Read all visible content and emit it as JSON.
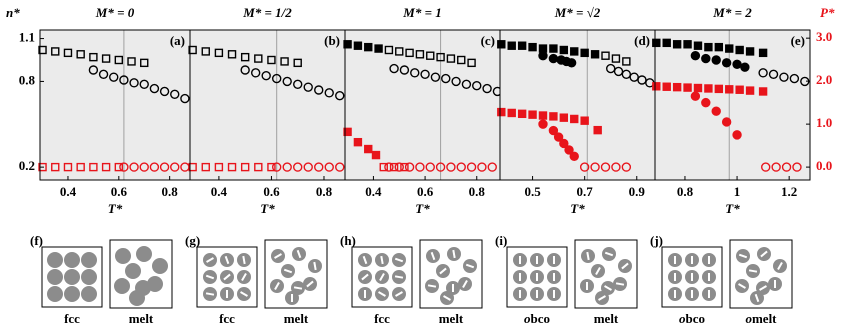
{
  "chart_data": [
    {
      "type": "scatter",
      "title": "M* = 0",
      "panel_label": "(a)",
      "xlabel": "T*",
      "ylabel": "n*",
      "xlim": [
        0.29,
        0.88
      ],
      "xticks": [
        0.4,
        0.6,
        0.8
      ],
      "ylim": [
        0.11,
        1.16
      ],
      "yticks": [
        0.2,
        0.8,
        1.1
      ],
      "y2lim": [
        -0.3,
        3.19
      ],
      "coexistence": 0.62,
      "series": [
        {
          "color": "#000000",
          "marker": "square",
          "filled": false,
          "x": [
            0.3,
            0.35,
            0.4,
            0.45,
            0.5,
            0.55,
            0.6,
            0.65,
            0.7
          ],
          "values": [
            1.02,
            1.01,
            1.0,
            0.99,
            0.97,
            0.96,
            0.95,
            0.94,
            0.93
          ]
        },
        {
          "color": "#000000",
          "marker": "circle",
          "filled": false,
          "x": [
            0.5,
            0.54,
            0.58,
            0.62,
            0.66,
            0.7,
            0.74,
            0.78,
            0.82,
            0.86
          ],
          "values": [
            0.88,
            0.85,
            0.83,
            0.81,
            0.79,
            0.78,
            0.75,
            0.73,
            0.71,
            0.68
          ]
        },
        {
          "color": "#e8141b",
          "marker": "square",
          "filled": false,
          "axis": "y2",
          "x": [
            0.3,
            0.35,
            0.4,
            0.45,
            0.5,
            0.55,
            0.6
          ],
          "values": [
            0,
            0,
            0,
            0,
            0,
            0,
            0
          ]
        },
        {
          "color": "#e8141b",
          "marker": "circle",
          "filled": false,
          "axis": "y2",
          "x": [
            0.62,
            0.66,
            0.7,
            0.74,
            0.78,
            0.82,
            0.86
          ],
          "values": [
            0,
            0,
            0,
            0,
            0,
            0,
            0
          ]
        }
      ]
    },
    {
      "type": "scatter",
      "title": "M* = 1/2",
      "panel_label": "(b)",
      "xlabel": "T*",
      "xlim": [
        0.29,
        0.88
      ],
      "xticks": [
        0.4,
        0.6,
        0.8
      ],
      "ylim": [
        0.11,
        1.16
      ],
      "y2lim": [
        -0.3,
        3.19
      ],
      "coexistence": 0.62,
      "series": [
        {
          "color": "#000000",
          "marker": "square",
          "filled": false,
          "x": [
            0.3,
            0.35,
            0.4,
            0.45,
            0.5,
            0.55,
            0.6,
            0.65,
            0.7
          ],
          "values": [
            1.02,
            1.01,
            1.0,
            0.99,
            0.97,
            0.96,
            0.95,
            0.94,
            0.93
          ]
        },
        {
          "color": "#000000",
          "marker": "circle",
          "filled": false,
          "x": [
            0.5,
            0.54,
            0.58,
            0.62,
            0.66,
            0.7,
            0.74,
            0.78,
            0.82,
            0.86
          ],
          "values": [
            0.88,
            0.86,
            0.84,
            0.82,
            0.8,
            0.78,
            0.76,
            0.74,
            0.72,
            0.7
          ]
        },
        {
          "color": "#e8141b",
          "marker": "square",
          "filled": false,
          "axis": "y2",
          "x": [
            0.3,
            0.35,
            0.4,
            0.45,
            0.5,
            0.55,
            0.6
          ],
          "values": [
            0,
            0,
            0,
            0,
            0,
            0,
            0
          ]
        },
        {
          "color": "#e8141b",
          "marker": "circle",
          "filled": false,
          "axis": "y2",
          "x": [
            0.62,
            0.66,
            0.7,
            0.74,
            0.78,
            0.82,
            0.86
          ],
          "values": [
            0,
            0,
            0,
            0,
            0,
            0,
            0
          ]
        }
      ]
    },
    {
      "type": "scatter",
      "title": "M* = 1",
      "panel_label": "(c)",
      "xlabel": "T*",
      "xlim": [
        0.29,
        0.89
      ],
      "xticks": [
        0.4,
        0.6,
        0.8
      ],
      "ylim": [
        0.11,
        1.16
      ],
      "y2lim": [
        -0.3,
        3.19
      ],
      "coexistence": 0.66,
      "series": [
        {
          "color": "#000000",
          "marker": "square",
          "filled": true,
          "x": [
            0.3,
            0.34,
            0.38,
            0.42
          ],
          "values": [
            1.06,
            1.05,
            1.04,
            1.03
          ]
        },
        {
          "color": "#000000",
          "marker": "square",
          "filled": false,
          "x": [
            0.46,
            0.5,
            0.54,
            0.58,
            0.62,
            0.66,
            0.7,
            0.74,
            0.78
          ],
          "values": [
            1.02,
            1.01,
            1.0,
            0.99,
            0.98,
            0.97,
            0.96,
            0.95,
            0.93
          ]
        },
        {
          "color": "#000000",
          "marker": "circle",
          "filled": false,
          "x": [
            0.48,
            0.52,
            0.56,
            0.6,
            0.64,
            0.68,
            0.72,
            0.76,
            0.8,
            0.84,
            0.88
          ],
          "values": [
            0.89,
            0.88,
            0.86,
            0.85,
            0.83,
            0.82,
            0.8,
            0.78,
            0.77,
            0.75,
            0.73
          ]
        },
        {
          "color": "#e8141b",
          "marker": "square",
          "filled": true,
          "axis": "y2",
          "x": [
            0.3,
            0.34,
            0.38,
            0.41
          ],
          "values": [
            0.82,
            0.58,
            0.42,
            0.28
          ]
        },
        {
          "color": "#e8141b",
          "marker": "square",
          "filled": false,
          "axis": "y2",
          "x": [
            0.44,
            0.48,
            0.52
          ],
          "values": [
            0,
            0,
            0
          ]
        },
        {
          "color": "#e8141b",
          "marker": "circle",
          "filled": false,
          "axis": "y2",
          "x": [
            0.46,
            0.5,
            0.54,
            0.58,
            0.62,
            0.66,
            0.7,
            0.74,
            0.78,
            0.82,
            0.86
          ],
          "values": [
            0,
            0,
            0,
            0,
            0,
            0,
            0,
            0,
            0,
            0,
            0
          ]
        }
      ]
    },
    {
      "type": "scatter",
      "title": "M* = √2",
      "panel_label": "(d)",
      "xlabel": "T*",
      "xlim": [
        0.375,
        0.97
      ],
      "xticks": [
        0.5,
        0.7,
        0.9
      ],
      "ylim": [
        0.11,
        1.16
      ],
      "y2lim": [
        -0.3,
        3.19
      ],
      "coexistence": 0.71,
      "series": [
        {
          "color": "#000000",
          "marker": "square",
          "filled": true,
          "x": [
            0.38,
            0.42,
            0.46,
            0.5,
            0.54,
            0.58,
            0.62,
            0.66,
            0.7,
            0.74
          ],
          "values": [
            1.06,
            1.05,
            1.05,
            1.04,
            1.03,
            1.03,
            1.02,
            1.01,
            1.0,
            0.99
          ]
        },
        {
          "color": "#000000",
          "marker": "circle",
          "filled": true,
          "x": [
            0.54,
            0.58,
            0.61,
            0.63,
            0.65
          ],
          "values": [
            0.98,
            0.96,
            0.95,
            0.94,
            0.93
          ]
        },
        {
          "color": "#000000",
          "marker": "square",
          "filled": false,
          "x": [
            0.78,
            0.82,
            0.86
          ],
          "values": [
            0.98,
            0.96,
            0.94
          ]
        },
        {
          "color": "#000000",
          "marker": "circle",
          "filled": false,
          "x": [
            0.8,
            0.83,
            0.86,
            0.89,
            0.92,
            0.95
          ],
          "values": [
            0.89,
            0.87,
            0.85,
            0.83,
            0.81,
            0.79
          ]
        },
        {
          "color": "#e8141b",
          "marker": "square",
          "filled": true,
          "axis": "y2",
          "x": [
            0.38,
            0.42,
            0.46,
            0.5,
            0.54,
            0.58,
            0.62,
            0.66,
            0.7,
            0.75
          ],
          "values": [
            1.28,
            1.26,
            1.24,
            1.22,
            1.2,
            1.18,
            1.15,
            1.12,
            1.08,
            0.86
          ]
        },
        {
          "color": "#e8141b",
          "marker": "circle",
          "filled": true,
          "axis": "y2",
          "x": [
            0.54,
            0.58,
            0.6,
            0.62,
            0.64,
            0.66
          ],
          "values": [
            1.0,
            0.85,
            0.7,
            0.55,
            0.4,
            0.25
          ]
        },
        {
          "color": "#e8141b",
          "marker": "circle",
          "filled": false,
          "axis": "y2",
          "x": [
            0.7,
            0.74,
            0.78,
            0.82,
            0.86
          ],
          "values": [
            0,
            0,
            0,
            0,
            0
          ]
        }
      ]
    },
    {
      "type": "scatter",
      "title": "M* = 2",
      "panel_label": "(e)",
      "xlabel": "T*",
      "y2label": "P*",
      "xlim": [
        0.685,
        1.28
      ],
      "xticks": [
        0.8,
        1.0,
        1.2
      ],
      "ylim": [
        0.11,
        1.16
      ],
      "y2lim": [
        -0.3,
        3.19
      ],
      "coexistence": 0.97,
      "y2ticks": [
        {
          "value": 0,
          "label": "0.0"
        },
        {
          "value": 1,
          "label": "1.0"
        },
        {
          "value": 2,
          "label": "2.0"
        },
        {
          "value": 3,
          "label": "3.0"
        }
      ],
      "y2color": "#e8141b",
      "series": [
        {
          "color": "#000000",
          "marker": "square",
          "filled": true,
          "x": [
            0.69,
            0.73,
            0.77,
            0.81,
            0.85,
            0.89,
            0.93,
            0.97,
            1.01,
            1.05,
            1.1
          ],
          "values": [
            1.07,
            1.07,
            1.06,
            1.06,
            1.05,
            1.04,
            1.04,
            1.03,
            1.02,
            1.01,
            1.0
          ]
        },
        {
          "color": "#000000",
          "marker": "circle",
          "filled": true,
          "x": [
            0.84,
            0.88,
            0.92,
            0.96,
            1.0,
            1.03
          ],
          "values": [
            0.98,
            0.96,
            0.95,
            0.93,
            0.92,
            0.9
          ]
        },
        {
          "color": "#000000",
          "marker": "circle",
          "filled": false,
          "x": [
            1.1,
            1.14,
            1.18,
            1.22,
            1.26
          ],
          "values": [
            0.86,
            0.85,
            0.83,
            0.82,
            0.8
          ]
        },
        {
          "color": "#e8141b",
          "marker": "square",
          "filled": true,
          "axis": "y2",
          "x": [
            0.69,
            0.73,
            0.77,
            0.81,
            0.85,
            0.89,
            0.93,
            0.97,
            1.01,
            1.05,
            1.1
          ],
          "values": [
            1.88,
            1.87,
            1.86,
            1.85,
            1.84,
            1.83,
            1.82,
            1.81,
            1.8,
            1.78,
            1.76
          ]
        },
        {
          "color": "#e8141b",
          "marker": "circle",
          "filled": true,
          "axis": "y2",
          "x": [
            0.84,
            0.88,
            0.92,
            0.96,
            1.0
          ],
          "values": [
            1.65,
            1.5,
            1.3,
            1.05,
            0.75
          ]
        },
        {
          "color": "#e8141b",
          "marker": "circle",
          "filled": false,
          "axis": "y2",
          "x": [
            1.11,
            1.15,
            1.19,
            1.23
          ],
          "values": [
            0,
            0,
            0,
            0
          ]
        }
      ]
    }
  ],
  "illustrations": [
    {
      "label": "(f)",
      "left": "fcc",
      "right": "melt"
    },
    {
      "label": "(g)",
      "left": "fcc",
      "right": "melt"
    },
    {
      "label": "(h)",
      "left": "fcc",
      "right": "melt"
    },
    {
      "label": "(i)",
      "left": "obco",
      "right": "melt"
    },
    {
      "label": "(j)",
      "left": "obco",
      "right": "omelt"
    }
  ]
}
